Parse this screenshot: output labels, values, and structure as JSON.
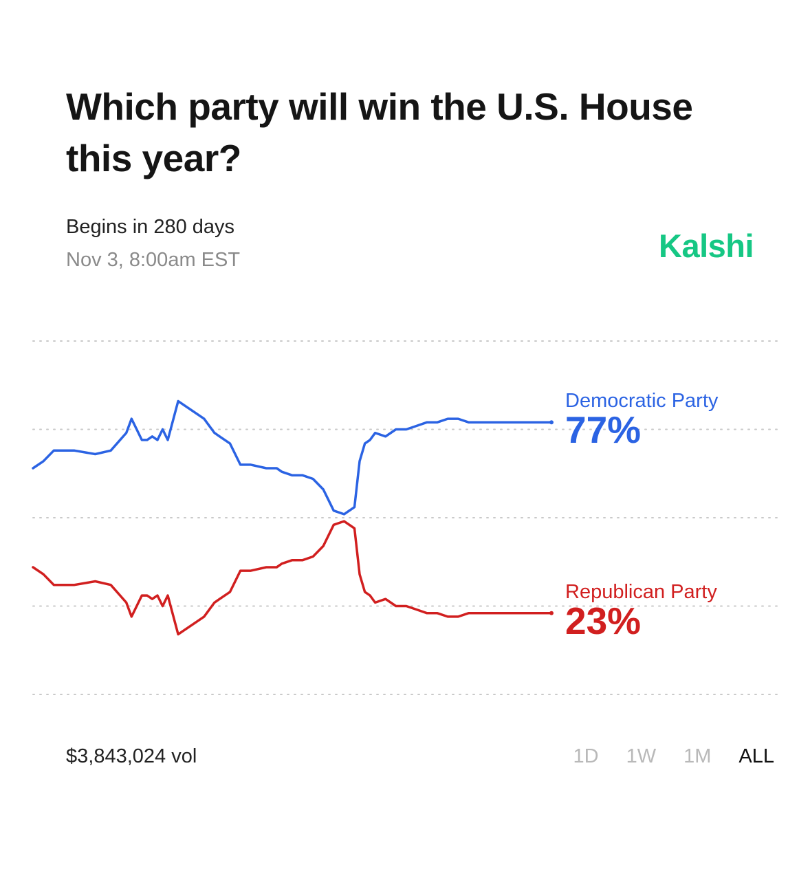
{
  "header": {
    "title": "Which party will win the U.S. House this year?",
    "begins": "Begins in 280 days",
    "date": "Nov 3, 8:00am EST",
    "brand": "Kalshi",
    "brand_color": "#16c784"
  },
  "footer": {
    "volume": "$3,843,024 vol",
    "ranges": [
      "1D",
      "1W",
      "1M",
      "ALL"
    ],
    "active_range": "ALL"
  },
  "chart_data": {
    "type": "line",
    "title": "Which party will win the U.S. House this year?",
    "xlabel": "",
    "ylabel": "",
    "ylim": [
      0,
      100
    ],
    "grid": "dotted horizontal",
    "x": [
      0,
      2,
      4,
      6,
      8,
      12,
      15,
      18,
      19,
      20,
      21,
      22,
      23,
      24,
      25,
      26,
      28,
      30,
      32,
      33,
      34,
      35,
      36,
      38,
      40,
      42,
      45,
      47,
      48,
      50,
      52,
      54,
      56,
      58,
      60,
      62,
      63,
      64,
      65,
      66,
      68,
      70,
      72,
      74,
      76,
      78,
      80,
      82,
      84,
      86,
      88,
      90,
      92,
      94,
      96,
      98,
      100
    ],
    "series": [
      {
        "name": "Democratic Party",
        "label": "77%",
        "color": "#2b63e3",
        "values": [
          64,
          66,
          69,
          69,
          69,
          68,
          69,
          74,
          78,
          75,
          72,
          72,
          73,
          72,
          75,
          72,
          83,
          81,
          79,
          78,
          76,
          74,
          73,
          71,
          65,
          65,
          64,
          64,
          63,
          62,
          62,
          61,
          58,
          52,
          51,
          53,
          66,
          71,
          72,
          74,
          73,
          75,
          75,
          76,
          77,
          77,
          78,
          78,
          77,
          77,
          77,
          77,
          77,
          77,
          77,
          77,
          77
        ]
      },
      {
        "name": "Republican Party",
        "label": "23%",
        "color": "#d11f1f",
        "values": [
          36,
          34,
          31,
          31,
          31,
          32,
          31,
          26,
          22,
          25,
          28,
          28,
          27,
          28,
          25,
          28,
          17,
          19,
          21,
          22,
          24,
          26,
          27,
          29,
          35,
          35,
          36,
          36,
          37,
          38,
          38,
          39,
          42,
          48,
          49,
          47,
          34,
          29,
          28,
          26,
          27,
          25,
          25,
          24,
          23,
          23,
          22,
          22,
          23,
          23,
          23,
          23,
          23,
          23,
          23,
          23,
          23
        ]
      }
    ]
  }
}
